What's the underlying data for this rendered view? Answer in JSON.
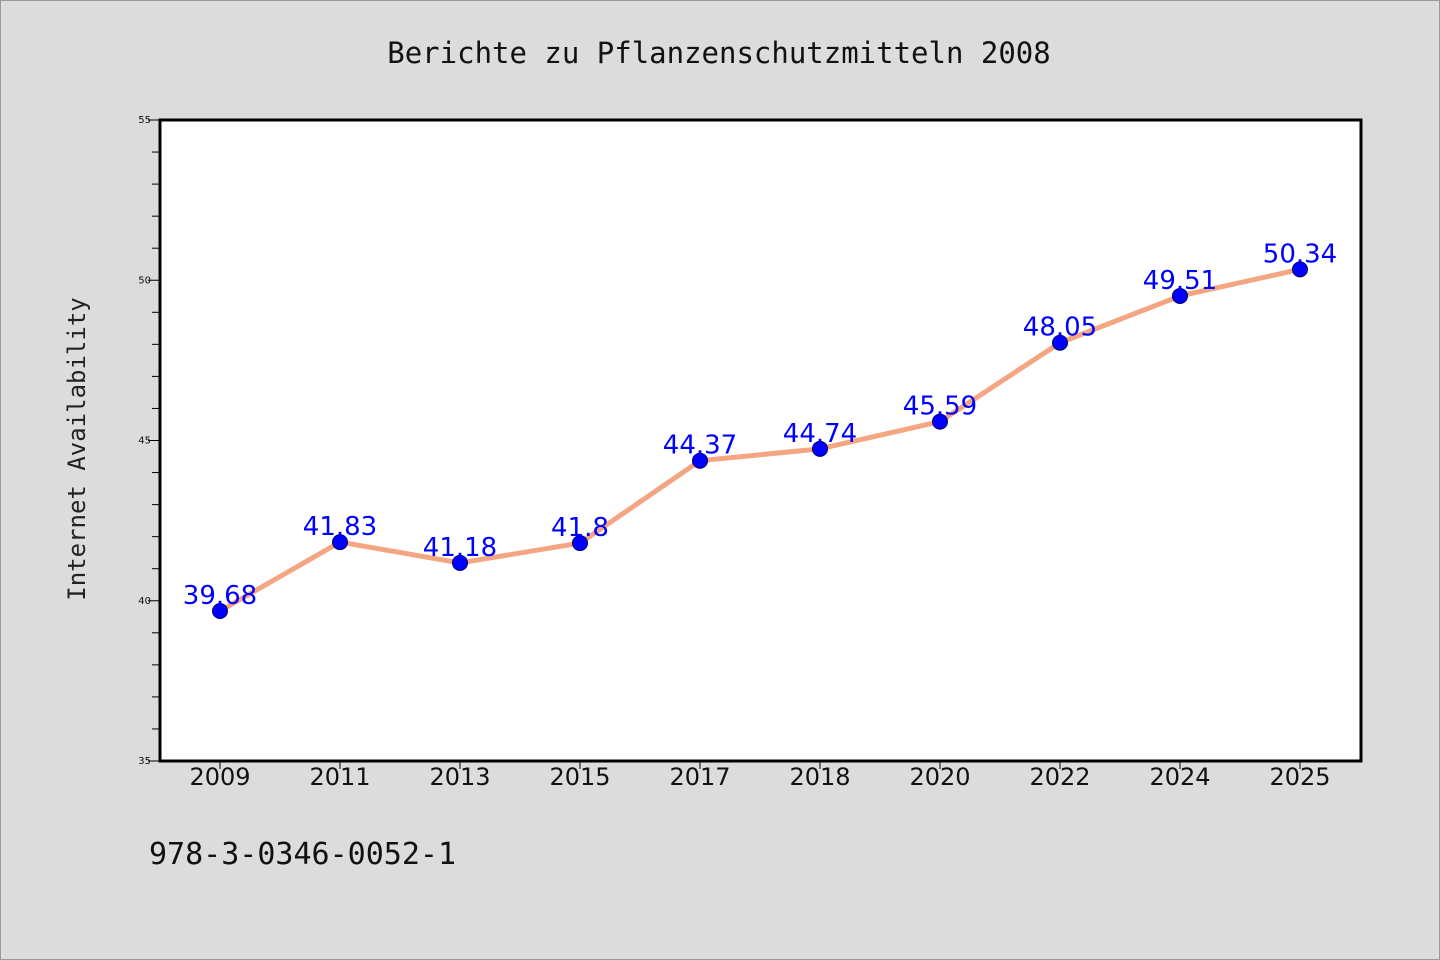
{
  "chart_data": {
    "type": "line",
    "title": "Berichte zu Pflanzenschutzmitteln 2008",
    "xlabel": "",
    "ylabel": "Internet Availability",
    "categories": [
      "2009",
      "2011",
      "2013",
      "2015",
      "2017",
      "2018",
      "2020",
      "2022",
      "2024",
      "2025"
    ],
    "series": [
      {
        "values": [
          39.68,
          41.83,
          41.18,
          41.8,
          44.37,
          44.74,
          45.59,
          48.05,
          49.51,
          50.34
        ],
        "data_labels": [
          "39.68",
          "41.83",
          "41.18",
          "41.8",
          "44.37",
          "44.74",
          "45.59",
          "48.05",
          "49.51",
          "50.34"
        ],
        "line_color": "#f4a582",
        "marker_color": "#0000ff"
      }
    ],
    "ylim": [
      35,
      55
    ],
    "yticks": [
      35,
      40,
      45,
      50,
      55
    ],
    "ytick_labels": [
      "35",
      "40",
      "45",
      "50",
      "55"
    ],
    "grid": false,
    "label_color": "#0000ff"
  },
  "footer": {
    "isbn": "978-3-0346-0052-1"
  },
  "colors": {
    "background": "#dcdcdc",
    "plot_background": "#ffffff"
  }
}
